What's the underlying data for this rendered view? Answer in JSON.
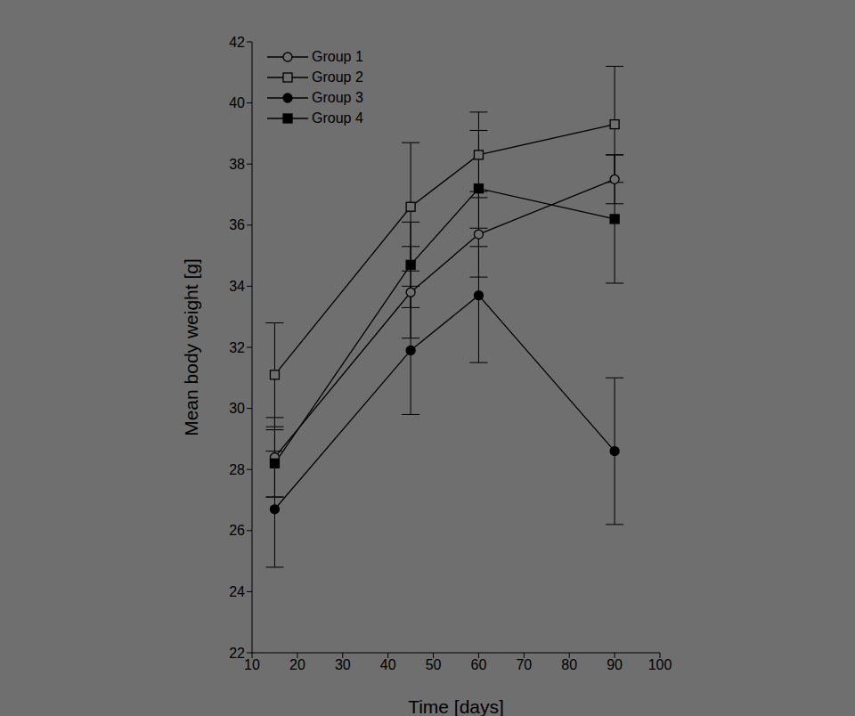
{
  "chart_data": {
    "type": "line",
    "x_label": "Time [days]",
    "y_label": "Mean body weight [g]",
    "x": [
      15,
      45,
      60,
      90
    ],
    "xlim": [
      10,
      100
    ],
    "xticks": [
      10,
      20,
      30,
      40,
      50,
      60,
      70,
      80,
      90,
      100
    ],
    "ylim": [
      22,
      42
    ],
    "yticks": [
      22,
      24,
      26,
      28,
      30,
      32,
      34,
      36,
      38,
      40,
      42
    ],
    "grid": false,
    "legend": "upper left",
    "series": [
      {
        "name": "Group 1",
        "color": "#000000",
        "marker": "open-circle",
        "values": [
          28.4,
          33.8,
          35.7,
          37.5
        ],
        "errors": [
          1.3,
          1.5,
          1.4,
          0.8
        ]
      },
      {
        "name": "Group 2",
        "color": "#000000",
        "marker": "open-square",
        "values": [
          31.1,
          36.6,
          38.3,
          39.3
        ],
        "errors": [
          1.7,
          2.1,
          1.4,
          1.9
        ]
      },
      {
        "name": "Group 3",
        "color": "#000000",
        "marker": "circle",
        "values": [
          26.7,
          31.9,
          33.7,
          28.6
        ],
        "errors": [
          1.9,
          2.1,
          2.2,
          2.4
        ]
      },
      {
        "name": "Group 4",
        "color": "#000000",
        "marker": "square",
        "values": [
          28.2,
          34.7,
          37.2,
          36.2
        ],
        "errors": [
          1.1,
          1.4,
          1.9,
          2.1
        ]
      }
    ]
  }
}
